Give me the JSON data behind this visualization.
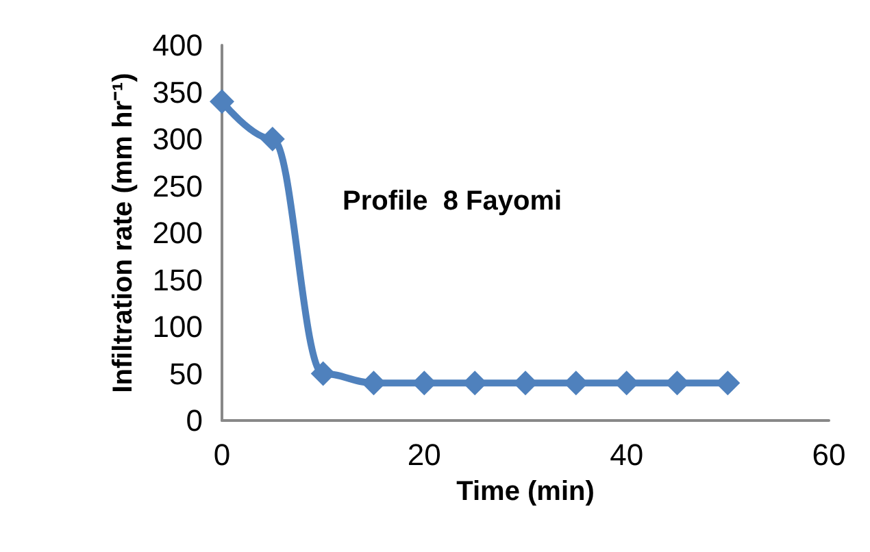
{
  "chart_data": {
    "type": "line",
    "xlabel": "Time (min)",
    "ylabel": "Infiltration rate (mm hr⁻¹)",
    "annotations": [
      "Profile  8 Fayomi"
    ],
    "x": [
      0,
      5,
      10,
      15,
      20,
      25,
      30,
      35,
      40,
      45,
      50
    ],
    "series": [
      {
        "color": "#4f81bd",
        "values": [
          340,
          300,
          50,
          40,
          40,
          40,
          40,
          40,
          40,
          40,
          40
        ]
      }
    ],
    "xlim": [
      0,
      60
    ],
    "xticks": [
      0,
      20,
      40,
      60
    ],
    "ylim": [
      0,
      400
    ],
    "yticks": [
      0,
      50,
      100,
      150,
      200,
      250,
      300,
      350,
      400
    ],
    "grid": false,
    "marker": "diamond",
    "line_style": "solid"
  }
}
